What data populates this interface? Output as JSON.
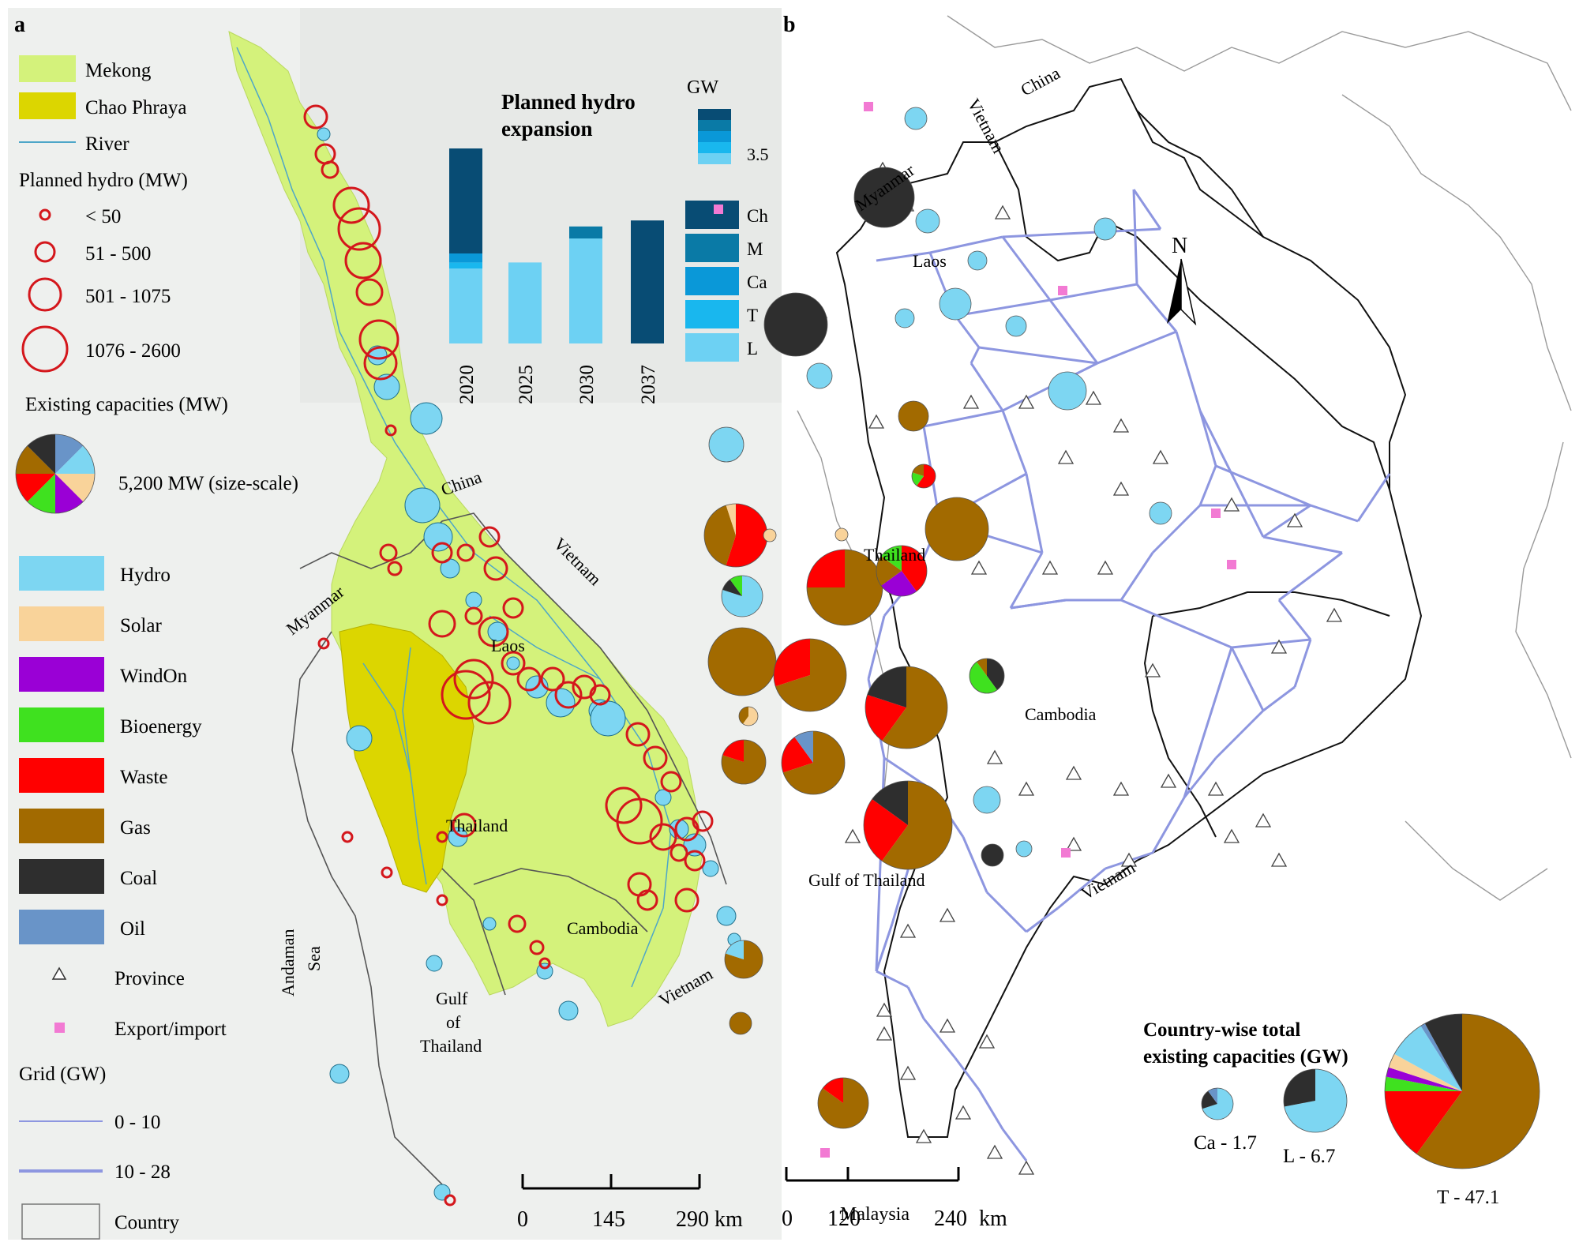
{
  "panel_a": {
    "tag": "a",
    "legend": {
      "basins": [
        {
          "label": "Mekong",
          "color": "#d4f27b"
        },
        {
          "label": "Chao Phraya",
          "color": "#dcd600"
        }
      ],
      "river_label": "River",
      "planned_title": "Planned hydro (MW)",
      "planned_classes": [
        "< 50",
        "51 - 500",
        "501 - 1075",
        "1076 - 2600"
      ],
      "existing_title": "Existing capacities (MW)",
      "existing_scale_label": "5,200 MW (size-scale)",
      "technologies": [
        {
          "label": "Hydro",
          "color": "#7dd6f2"
        },
        {
          "label": "Solar",
          "color": "#f9d39a"
        },
        {
          "label": "WindOn",
          "color": "#9a00d6"
        },
        {
          "label": "Bioenergy",
          "color": "#3fe11f"
        },
        {
          "label": "Waste",
          "color": "#ff0000"
        },
        {
          "label": "Gas",
          "color": "#a26a00"
        },
        {
          "label": "Coal",
          "color": "#2e2e2e"
        },
        {
          "label": "Oil",
          "color": "#6994c8"
        }
      ],
      "province_label": "Province",
      "export_label": "Export/import",
      "grid_title": "Grid (GW)",
      "grid_classes": [
        "0 - 10",
        "10 - 28"
      ],
      "country_label": "Country"
    },
    "map_labels": {
      "china": "China",
      "vietnam": "Vietnam",
      "vietnam_south": "Vietnam",
      "myanmar": "Myanmar",
      "laos": "Laos",
      "thailand": "Thailand",
      "cambodia": "Cambodia",
      "andaman": "Andaman",
      "sea": "Sea",
      "gulf_line1": "Gulf",
      "gulf_line2": "of",
      "gulf_line3": "Thailand"
    },
    "scale": {
      "ticks": [
        "0",
        "145",
        "290 km"
      ]
    },
    "chart_data": {
      "type": "bar",
      "title": "Planned hydro expansion",
      "unit": "GW",
      "categories": [
        "2020",
        "2025",
        "2030",
        "2037"
      ],
      "series": [
        {
          "name": "L",
          "values": [
            2.5,
            2.7,
            3.5,
            0
          ]
        },
        {
          "name": "T",
          "values": [
            0.2,
            0,
            0,
            0
          ]
        },
        {
          "name": "Ca",
          "values": [
            0.3,
            0,
            0,
            0
          ]
        },
        {
          "name": "M",
          "values": [
            0,
            0,
            0.4,
            0
          ]
        },
        {
          "name": "Ch",
          "values": [
            3.5,
            0,
            0,
            4.1
          ]
        }
      ],
      "series_colors": {
        "L": "#6dd1f3",
        "T": "#19b7ee",
        "Ca": "#0a98d8",
        "M": "#0a7aa6",
        "Ch": "#084c74"
      },
      "legend_ramp_value": "3.5",
      "legend_labels": [
        "Ch",
        "M",
        "Ca",
        "T",
        "L"
      ]
    }
  },
  "panel_b": {
    "tag": "b",
    "map_labels": {
      "china": "China",
      "vietnam_north": "Vietnam",
      "myanmar": "Myanmar",
      "laos": "Laos",
      "thailand": "Thailand",
      "cambodia": "Cambodia",
      "gulf": "Gulf of Thailand",
      "vietnam_south": "Vietnam",
      "malaysia": "Malaysia",
      "north": "N"
    },
    "scale": {
      "ticks": [
        "0",
        "120",
        "240",
        "km"
      ]
    },
    "country_totals": {
      "title_line1": "Country-wise total",
      "title_line2": "existing capacities (GW)",
      "items": [
        {
          "label": "Ca - 1.7",
          "total_gw": 1.7,
          "shares": {
            "Hydro": 0.7,
            "Coal": 0.2,
            "Oil": 0.1
          }
        },
        {
          "label": "L - 6.7",
          "total_gw": 6.7,
          "shares": {
            "Hydro": 0.72,
            "Coal": 0.28
          }
        },
        {
          "label": "T - 47.1",
          "total_gw": 47.1,
          "shares": {
            "Gas": 0.6,
            "Waste": 0.15,
            "Bioenergy": 0.03,
            "WindOn": 0.02,
            "Solar": 0.03,
            "Hydro": 0.08,
            "Oil": 0.01,
            "Coal": 0.08
          }
        }
      ]
    }
  }
}
